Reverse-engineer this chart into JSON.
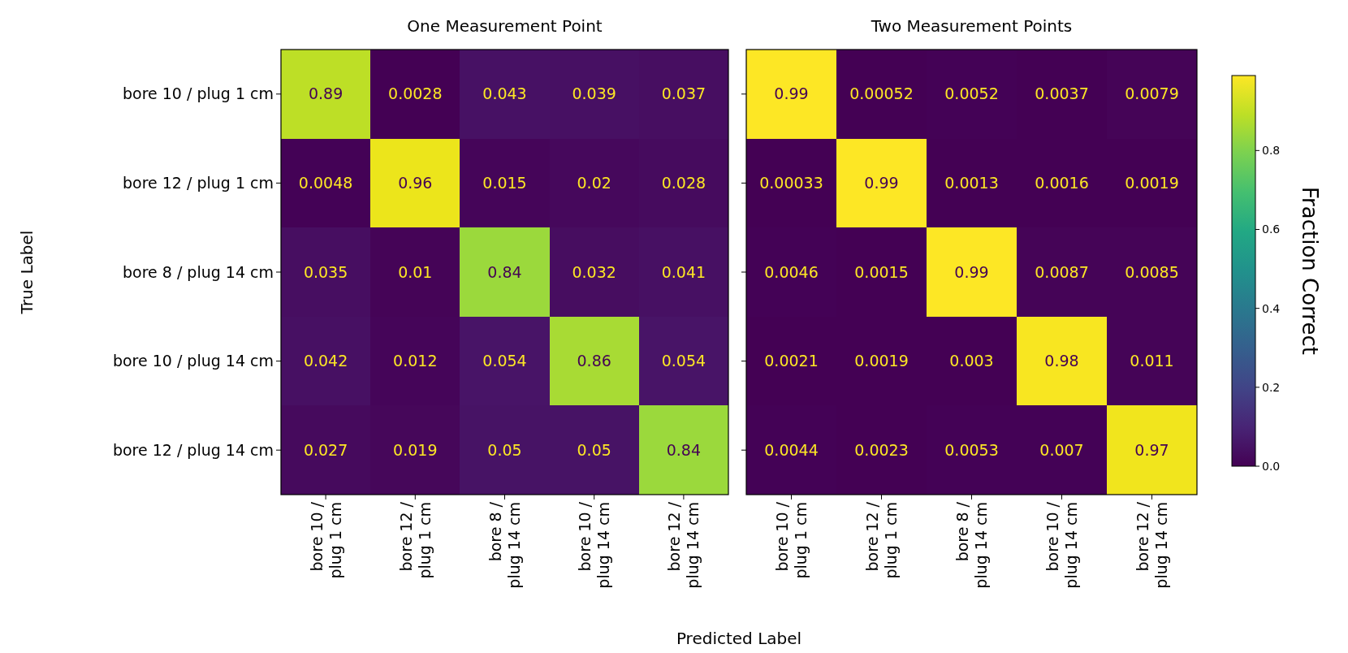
{
  "chart_data": [
    {
      "type": "heatmap",
      "title": "One Measurement Point",
      "xlabel": "Predicted Label",
      "ylabel": "True Label",
      "categories": [
        "bore 10 / plug 1 cm",
        "bore 12 / plug 1 cm",
        "bore 8 / plug 14 cm",
        "bore 10 / plug 14 cm",
        "bore 12 / plug 14 cm"
      ],
      "y_categories": [
        "bore 10 / plug 1 cm",
        "bore 12 / plug 1 cm",
        "bore 8 / plug 14 cm",
        "bore 10 / plug 14 cm",
        "bore 12 / plug 14 cm"
      ],
      "cells": [
        [
          0.89,
          0.0028,
          0.043,
          0.039,
          0.037
        ],
        [
          0.0048,
          0.96,
          0.015,
          0.02,
          0.028
        ],
        [
          0.035,
          0.01,
          0.84,
          0.032,
          0.041
        ],
        [
          0.042,
          0.012,
          0.054,
          0.86,
          0.054
        ],
        [
          0.027,
          0.019,
          0.05,
          0.05,
          0.84
        ]
      ],
      "data_labels": true
    },
    {
      "type": "heatmap",
      "title": "Two Measurement Points",
      "clabel": "Fraction Correct",
      "categories": [
        "bore 10 / plug 1 cm",
        "bore 12 / plug 1 cm",
        "bore 8 / plug 14 cm",
        "bore 10 / plug 14 cm",
        "bore 12 / plug 14 cm"
      ],
      "y_categories": [
        null,
        null,
        null,
        null,
        null
      ],
      "tick_labels": "x",
      "cells": [
        [
          0.99,
          0.00052,
          0.0052,
          0.0037,
          0.0079
        ],
        [
          0.00033,
          0.99,
          0.0013,
          0.0016,
          0.0019
        ],
        [
          0.0046,
          0.0015,
          0.99,
          0.0087,
          0.0085
        ],
        [
          0.0021,
          0.0019,
          0.003,
          0.98,
          0.011
        ],
        [
          0.0044,
          0.0023,
          0.0053,
          0.007,
          0.97
        ]
      ],
      "data_labels": true,
      "clim": [
        0,
        0.99
      ],
      "cticks": [
        {
          "value": 0,
          "label": "0.0"
        },
        0.2,
        0.4,
        0.6,
        0.8
      ]
    }
  ]
}
